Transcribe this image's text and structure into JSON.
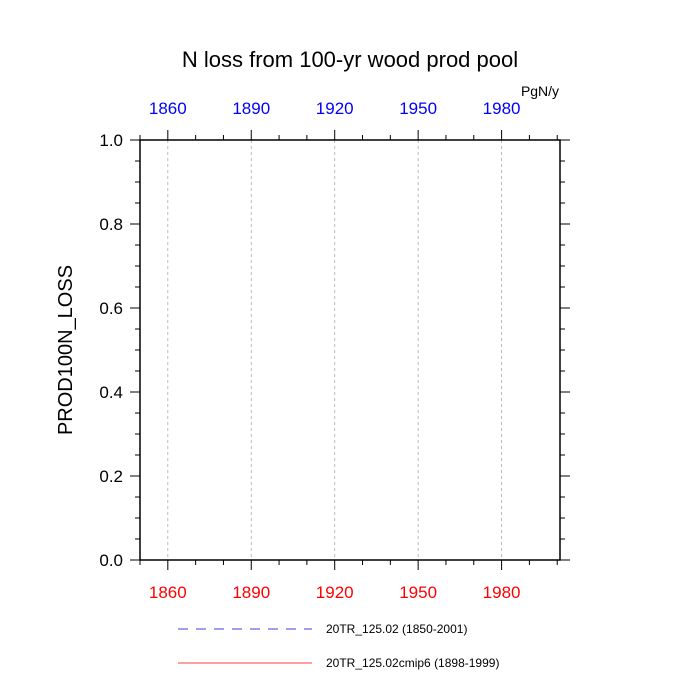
{
  "chart_data": {
    "type": "line",
    "title": "N loss from 100-yr wood prod pool",
    "units": "PgN/y",
    "ylabel": "PROD100N_LOSS",
    "xlabel": "",
    "xlim": [
      1850,
      2001
    ],
    "ylim": [
      0.0,
      1.0
    ],
    "x_ticks": [
      1860,
      1890,
      1920,
      1950,
      1980
    ],
    "y_ticks": [
      0.0,
      0.2,
      0.4,
      0.6,
      0.8,
      1.0
    ],
    "y_tick_labels": [
      "0.0",
      "0.2",
      "0.4",
      "0.6",
      "0.8",
      "1.0"
    ],
    "top_axis_color": "#0000ff",
    "bottom_axis_color": "#ff0000",
    "grid": "vertical dashed at x ticks",
    "legend_position": "bottom",
    "series": [
      {
        "name": "20TR_125.02 (1850-2001)",
        "color": "#0000cc",
        "style": "dashed",
        "x_range": [
          1850,
          2001
        ],
        "values": "constant 0"
      },
      {
        "name": "20TR_125.02cmip6 (1898-1999)",
        "color": "#ff0000",
        "style": "solid",
        "x_range": [
          1898,
          1999
        ],
        "values": "constant 0"
      }
    ]
  }
}
